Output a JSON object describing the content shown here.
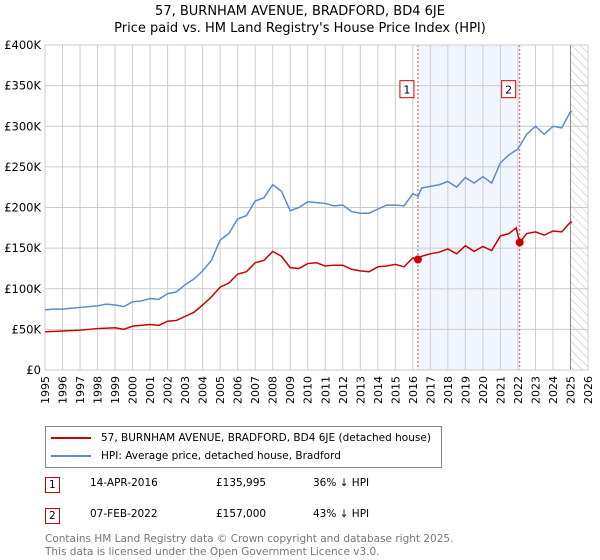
{
  "chart_data": {
    "type": "line",
    "title": "57, BURNHAM AVENUE, BRADFORD, BD4 6JE",
    "subtitle": "Price paid vs. HM Land Registry's House Price Index (HPI)",
    "xlim": [
      1995,
      2026
    ],
    "ylim": [
      0,
      400000
    ],
    "x_ticks": [
      "1995",
      "1996",
      "1997",
      "1998",
      "1999",
      "2000",
      "2001",
      "2002",
      "2003",
      "2004",
      "2005",
      "2006",
      "2007",
      "2008",
      "2009",
      "2010",
      "2011",
      "2012",
      "2013",
      "2014",
      "2015",
      "2016",
      "2017",
      "2018",
      "2019",
      "2020",
      "2021",
      "2022",
      "2023",
      "2024",
      "2025",
      "2026"
    ],
    "y_ticks": [
      {
        "v": 0,
        "l": "£0"
      },
      {
        "v": 50000,
        "l": "£50K"
      },
      {
        "v": 100000,
        "l": "£100K"
      },
      {
        "v": 150000,
        "l": "£150K"
      },
      {
        "v": 200000,
        "l": "£200K"
      },
      {
        "v": 250000,
        "l": "£250K"
      },
      {
        "v": 300000,
        "l": "£300K"
      },
      {
        "v": 350000,
        "l": "£350K"
      },
      {
        "v": 400000,
        "l": "£400K"
      }
    ],
    "grid": true,
    "shaded_range": [
      2016.29,
      2022.1
    ],
    "forecast_from": 2025.0,
    "series": [
      {
        "name": "57, BURNHAM AVENUE, BRADFORD, BD4 6JE (detached house)",
        "color": "#cc0000",
        "x": [
          1995,
          1996,
          1997,
          1998,
          1999,
          1999.5,
          2000,
          2001,
          2001.5,
          2002,
          2002.5,
          2003,
          2003.5,
          2004,
          2004.5,
          2005,
          2005.5,
          2006,
          2006.5,
          2007,
          2007.5,
          2008,
          2008.5,
          2009,
          2009.5,
          2010,
          2010.5,
          2011,
          2011.5,
          2012,
          2012.5,
          2013,
          2013.5,
          2014,
          2014.5,
          2015,
          2015.5,
          2016,
          2016.29,
          2016.5,
          2017,
          2017.5,
          2018,
          2018.5,
          2019,
          2019.5,
          2020,
          2020.5,
          2021,
          2021.5,
          2021.9,
          2022.1,
          2022.5,
          2023,
          2023.5,
          2024,
          2024.5,
          2025,
          2025.1
        ],
        "y": [
          47000,
          48000,
          49000,
          51000,
          52000,
          50000,
          54000,
          56000,
          55000,
          60000,
          61000,
          66000,
          71000,
          80000,
          90000,
          102000,
          107000,
          118000,
          121000,
          132000,
          135000,
          146000,
          140000,
          126000,
          125000,
          131000,
          132000,
          128000,
          129000,
          129000,
          124000,
          122000,
          121000,
          127000,
          128000,
          130000,
          127000,
          138000,
          135995,
          140000,
          143000,
          145000,
          149000,
          143000,
          153000,
          146000,
          152000,
          147000,
          165000,
          168000,
          175000,
          157000,
          168000,
          170000,
          166000,
          171000,
          170000,
          182000,
          182000
        ]
      },
      {
        "name": "HPI: Average price, detached house, Bradford",
        "color": "#5b8bd0",
        "x": [
          1995,
          1995.5,
          1996,
          1996.5,
          1997,
          1997.5,
          1998,
          1998.5,
          1999,
          1999.5,
          2000,
          2000.5,
          2001,
          2001.5,
          2002,
          2002.5,
          2003,
          2003.5,
          2004,
          2004.5,
          2005,
          2005.5,
          2006,
          2006.5,
          2007,
          2007.5,
          2008,
          2008.5,
          2009,
          2009.5,
          2010,
          2010.5,
          2011,
          2011.5,
          2012,
          2012.5,
          2013,
          2013.5,
          2014,
          2014.5,
          2015,
          2015.5,
          2016,
          2016.3,
          2016.5,
          2017,
          2017.5,
          2018,
          2018.5,
          2019,
          2019.5,
          2020,
          2020.5,
          2021,
          2021.5,
          2022,
          2022.5,
          2023,
          2023.5,
          2024,
          2024.5,
          2025,
          2025.1
        ],
        "y": [
          74000,
          75000,
          75000,
          76000,
          77000,
          78000,
          79000,
          81000,
          80000,
          78000,
          84000,
          85000,
          88000,
          87000,
          94000,
          96000,
          105000,
          112000,
          122000,
          135000,
          160000,
          168000,
          186000,
          190000,
          208000,
          212000,
          228000,
          220000,
          196000,
          200000,
          207000,
          206000,
          205000,
          202000,
          203000,
          195000,
          193000,
          193000,
          198000,
          203000,
          203000,
          202000,
          217000,
          214000,
          224000,
          226000,
          228000,
          232000,
          225000,
          237000,
          230000,
          238000,
          230000,
          255000,
          265000,
          272000,
          290000,
          300000,
          290000,
          300000,
          298000,
          318000,
          318000
        ]
      }
    ],
    "sales": [
      {
        "id": "1",
        "x": 2016.29,
        "y": 135995
      },
      {
        "id": "2",
        "x": 2022.1,
        "y": 157000
      }
    ]
  },
  "legend": {
    "property": "57, BURNHAM AVENUE, BRADFORD, BD4 6JE (detached house)",
    "hpi": "HPI: Average price, detached house, Bradford"
  },
  "transactions": [
    {
      "num": "1",
      "date": "14-APR-2016",
      "price": "£135,995",
      "delta": "36% ↓ HPI"
    },
    {
      "num": "2",
      "date": "07-FEB-2022",
      "price": "£157,000",
      "delta": "43% ↓ HPI"
    }
  ],
  "footer": {
    "line1": "Contains HM Land Registry data © Crown copyright and database right 2025.",
    "line2": "This data is licensed under the Open Government Licence v3.0."
  }
}
